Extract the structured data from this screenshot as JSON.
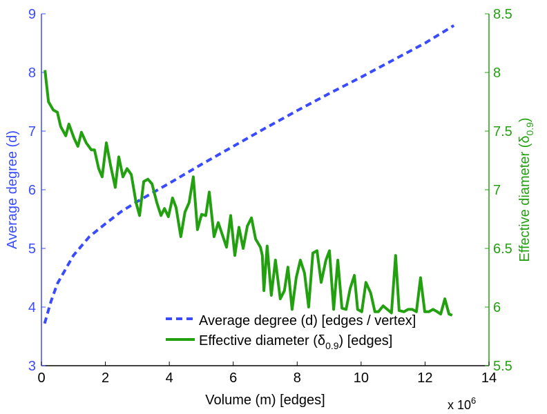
{
  "chart_data": {
    "type": "line",
    "xlabel": "Volume (m) [edges]",
    "x_multiplier": "x 10",
    "x_multiplier_exp": "6",
    "xlim": [
      0,
      14
    ],
    "xticks": [
      "0",
      "2",
      "4",
      "6",
      "8",
      "10",
      "12",
      "14"
    ],
    "ylabel_left": "Average degree (d)",
    "ylim_left": [
      3,
      9
    ],
    "yticks_left": [
      "3",
      "4",
      "5",
      "6",
      "7",
      "8",
      "9"
    ],
    "ylabel_right": "Effective diameter (δ",
    "ylabel_right_sub": "0.9",
    "ylabel_right_end": ")",
    "ylim_right": [
      5.5,
      8.5
    ],
    "yticks_right": [
      "5.5",
      "6",
      "6.5",
      "7",
      "7.5",
      "8",
      "8.5"
    ],
    "colors": {
      "left": "#3a4bff",
      "right": "#22a010",
      "axis": "#000000"
    },
    "series": [
      {
        "name": "Average degree (d) [edges / vertex]",
        "axis": "left",
        "style": "dashed",
        "x": [
          0.1,
          0.3,
          0.5,
          1,
          1.5,
          2,
          2.5,
          3,
          4,
          5,
          6,
          7,
          8,
          9,
          10,
          11,
          12,
          12.9
        ],
        "y": [
          3.72,
          4.1,
          4.4,
          4.88,
          5.2,
          5.42,
          5.63,
          5.8,
          6.11,
          6.43,
          6.74,
          7.05,
          7.35,
          7.64,
          7.92,
          8.21,
          8.5,
          8.8
        ]
      },
      {
        "name": "Effective diameter (δ",
        "name_sub": "0.9",
        "name_end": ") [edges]",
        "axis": "right",
        "style": "solid",
        "x": [
          0.11,
          0.22,
          0.37,
          0.5,
          0.6,
          0.76,
          0.86,
          1.02,
          1.14,
          1.25,
          1.4,
          1.56,
          1.66,
          1.79,
          1.9,
          2.03,
          2.16,
          2.31,
          2.42,
          2.55,
          2.68,
          2.81,
          2.96,
          3.07,
          3.2,
          3.33,
          3.46,
          3.61,
          3.74,
          3.85,
          3.97,
          4.1,
          4.21,
          4.36,
          4.49,
          4.62,
          4.75,
          4.88,
          5.01,
          5.14,
          5.25,
          5.4,
          5.53,
          5.79,
          5.92,
          6.05,
          6.18,
          6.31,
          6.44,
          6.57,
          6.7,
          6.85,
          6.91,
          6.96,
          7.06,
          7.19,
          7.32,
          7.47,
          7.6,
          7.71,
          7.84,
          7.97,
          8.1,
          8.23,
          8.36,
          8.49,
          8.62,
          8.75,
          8.9,
          9.01,
          9.14,
          9.27,
          9.4,
          9.53,
          9.66,
          9.79,
          9.89,
          10.02,
          10.15,
          10.3,
          10.43,
          10.54,
          10.69,
          10.82,
          10.95,
          11.08,
          11.19,
          11.34,
          11.47,
          11.6,
          11.73,
          11.86,
          11.99,
          12.12,
          12.25,
          12.38,
          12.49,
          12.62,
          12.75,
          12.85
        ],
        "y": [
          8.02,
          7.75,
          7.68,
          7.66,
          7.54,
          7.46,
          7.56,
          7.44,
          7.37,
          7.49,
          7.4,
          7.34,
          7.34,
          7.18,
          7.11,
          7.4,
          7.21,
          7.02,
          7.28,
          7.11,
          7.18,
          7.13,
          6.89,
          6.78,
          7.07,
          7.09,
          7.05,
          6.89,
          6.78,
          6.84,
          6.77,
          6.93,
          6.85,
          6.6,
          6.81,
          6.89,
          7.11,
          6.66,
          6.79,
          6.78,
          6.98,
          6.6,
          6.72,
          6.51,
          6.78,
          6.44,
          6.68,
          6.5,
          6.69,
          6.76,
          6.58,
          6.51,
          6.44,
          6.14,
          6.52,
          6.1,
          6.4,
          6.07,
          6.14,
          6.34,
          5.98,
          6.25,
          6.4,
          6.29,
          6.0,
          6.46,
          6.48,
          6.21,
          6.4,
          6.48,
          5.98,
          6.4,
          5.99,
          5.98,
          6.16,
          6.27,
          5.98,
          5.96,
          6.21,
          6.12,
          5.96,
          5.96,
          6.01,
          5.98,
          5.95,
          6.44,
          5.97,
          5.96,
          5.98,
          5.98,
          5.96,
          6.25,
          5.96,
          5.96,
          5.98,
          5.96,
          5.94,
          6.07,
          5.94,
          5.93
        ]
      }
    ],
    "legend": "bottom-right",
    "grid": false
  }
}
